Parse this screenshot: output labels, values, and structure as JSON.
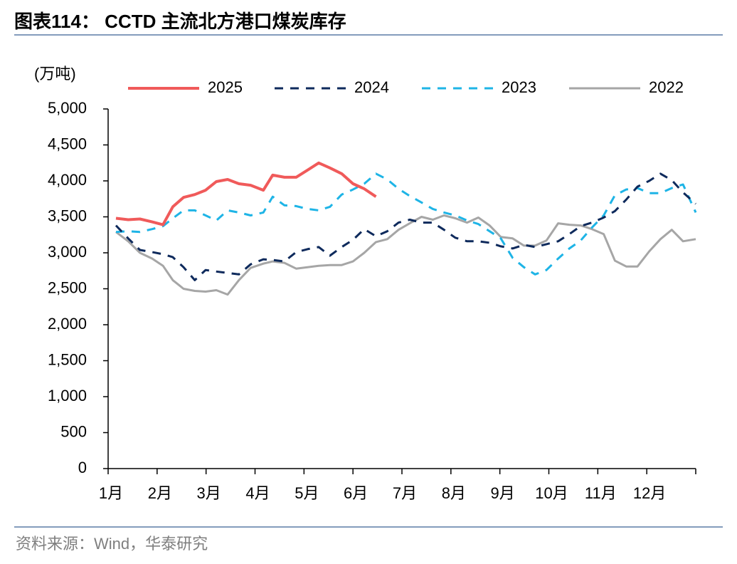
{
  "chart_data": {
    "type": "line",
    "title": "图表114： CCTD 主流北方港口煤炭库存",
    "y_label": "(万吨)",
    "source": "资料来源：Wind，华泰研究",
    "xlim": [
      0,
      12
    ],
    "xticks": [
      {
        "value": 0,
        "label": "1月"
      },
      {
        "value": 1,
        "label": "2月"
      },
      {
        "value": 2,
        "label": "3月"
      },
      {
        "value": 3,
        "label": "4月"
      },
      {
        "value": 4,
        "label": "5月"
      },
      {
        "value": 5,
        "label": "6月"
      },
      {
        "value": 6,
        "label": "7月"
      },
      {
        "value": 7,
        "label": "8月"
      },
      {
        "value": 8,
        "label": "9月"
      },
      {
        "value": 9,
        "label": "10月"
      },
      {
        "value": 10,
        "label": "11月"
      },
      {
        "value": 11,
        "label": "12月"
      }
    ],
    "ylim": [
      0,
      5000
    ],
    "yticks": [
      0,
      500,
      {
        "value": 1000,
        "label": "1,000"
      },
      {
        "value": 1500,
        "label": "1,500"
      },
      {
        "value": 2000,
        "label": "2,000"
      },
      {
        "value": 2500,
        "label": "2,500"
      },
      {
        "value": 3000,
        "label": "3,000"
      },
      {
        "value": 3500,
        "label": "3,500"
      },
      {
        "value": 4000,
        "label": "4,000"
      },
      {
        "value": 4500,
        "label": "4,500"
      },
      {
        "value": 5000,
        "label": "5,000"
      }
    ],
    "grid": false,
    "legend": "top",
    "x": [
      0.16,
      0.41,
      0.65,
      0.9,
      1.12,
      1.32,
      1.54,
      1.77,
      1.99,
      2.21,
      2.44,
      2.67,
      2.91,
      3.17,
      3.36,
      3.6,
      3.84,
      4.07,
      4.3,
      4.53,
      4.77,
      5.0,
      5.23,
      5.47,
      5.7,
      5.93,
      6.16,
      6.4,
      6.63,
      6.86,
      7.09,
      7.33,
      7.56,
      7.79,
      8.02,
      8.26,
      8.49,
      8.72,
      8.95,
      9.19,
      9.42,
      9.65,
      9.88,
      10.12,
      10.35,
      10.58,
      10.81,
      11.05,
      11.28,
      11.51,
      11.74,
      12.0
    ],
    "series": [
      {
        "name": "2025",
        "color": "#f05a5a",
        "dash": "solid",
        "values": [
          3480,
          3460,
          3470,
          3430,
          3390,
          3640,
          3770,
          3810,
          3870,
          3990,
          4020,
          3960,
          3940,
          3870,
          4080,
          4050,
          4050,
          4150,
          4250,
          4180,
          4100,
          3960,
          3890,
          3780,
          null,
          null,
          null,
          null,
          null,
          null,
          null,
          null,
          null,
          null,
          null,
          null,
          null,
          null,
          null,
          null,
          null,
          null,
          null,
          null,
          null,
          null,
          null,
          null,
          null,
          null,
          null,
          null
        ]
      },
      {
        "name": "2024",
        "color": "#0e2a5c",
        "dash": "dashed",
        "values": [
          3380,
          3200,
          3040,
          3010,
          2980,
          2940,
          2800,
          2620,
          2760,
          2740,
          2720,
          2700,
          2840,
          2910,
          2900,
          2880,
          3010,
          3050,
          3080,
          2960,
          3080,
          3180,
          3330,
          3230,
          3300,
          3420,
          3460,
          3420,
          3420,
          3320,
          3210,
          3160,
          3160,
          3140,
          3090,
          3060,
          3110,
          3080,
          3120,
          3160,
          3260,
          3370,
          3420,
          3490,
          3580,
          3740,
          3920,
          4000,
          4100,
          4010,
          3840,
          3680
        ]
      },
      {
        "name": "2023",
        "color": "#1eb4e6",
        "dash": "dashed",
        "values": [
          3290,
          3300,
          3290,
          3330,
          3370,
          3480,
          3590,
          3590,
          3520,
          3450,
          3590,
          3560,
          3520,
          3560,
          3780,
          3660,
          3650,
          3610,
          3590,
          3640,
          3810,
          3880,
          3960,
          4100,
          4020,
          3890,
          3790,
          3700,
          3610,
          3560,
          3520,
          3450,
          3400,
          3300,
          3200,
          2930,
          2800,
          2700,
          2760,
          2920,
          3060,
          3170,
          3350,
          3520,
          3800,
          3880,
          3900,
          3830,
          3830,
          3900,
          3950,
          3560
        ]
      },
      {
        "name": "2022",
        "color": "#a6a6a6",
        "dash": "solid",
        "values": [
          3290,
          3160,
          3000,
          2920,
          2820,
          2620,
          2500,
          2470,
          2460,
          2480,
          2420,
          2620,
          2790,
          2850,
          2880,
          2860,
          2780,
          2800,
          2820,
          2830,
          2830,
          2880,
          3000,
          3150,
          3190,
          3320,
          3410,
          3500,
          3460,
          3520,
          3480,
          3420,
          3490,
          3380,
          3220,
          3200,
          3100,
          3100,
          3170,
          3410,
          3390,
          3380,
          3330,
          3260,
          2890,
          2810,
          2810,
          3020,
          3190,
          3320,
          3160,
          3190
        ]
      }
    ]
  }
}
